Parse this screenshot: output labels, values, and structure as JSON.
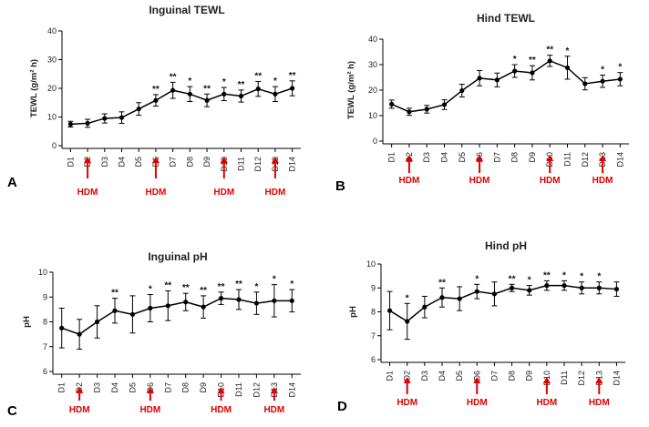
{
  "chart_data": [
    {
      "type": "line",
      "panel_letter": "A",
      "title": "Inguinal TEWL",
      "ylabel": "TEWL (g/m² h)",
      "ylim": [
        0,
        40
      ],
      "yticks": [
        0,
        10,
        20,
        30,
        40
      ],
      "grid": false,
      "categories": [
        "D1",
        "D2",
        "D3",
        "D4",
        "D5",
        "D6",
        "D7",
        "D8",
        "D9",
        "D10",
        "D11",
        "D12",
        "D13",
        "D14"
      ],
      "values": [
        7.5,
        7.8,
        9.5,
        9.8,
        12.8,
        15.8,
        19.3,
        18.0,
        15.8,
        18.0,
        17.3,
        19.8,
        18.0,
        20.0
      ],
      "errors": [
        1.0,
        1.4,
        1.6,
        2.0,
        2.2,
        2.0,
        2.8,
        2.6,
        2.2,
        2.3,
        2.1,
        2.6,
        2.6,
        2.6
      ],
      "significance": [
        "",
        "",
        "",
        "",
        "",
        "**",
        "**",
        "*",
        "**",
        "*",
        "**",
        "**",
        "*",
        "**"
      ],
      "hdm_days": [
        "D2",
        "D6",
        "D10",
        "D13"
      ],
      "hdm_label": "HDM"
    },
    {
      "type": "line",
      "panel_letter": "B",
      "title": "Hind TEWL",
      "ylabel": "TEWL (g/m² h)",
      "ylim": [
        0,
        40
      ],
      "yticks": [
        0,
        10,
        20,
        30,
        40
      ],
      "grid": false,
      "categories": [
        "D1",
        "D2",
        "D3",
        "D4",
        "D5",
        "D6",
        "D7",
        "D8",
        "D9",
        "D10",
        "D11",
        "D12",
        "D13",
        "D14"
      ],
      "values": [
        14.5,
        11.5,
        12.5,
        14.3,
        19.8,
        24.7,
        24.0,
        27.5,
        26.8,
        31.5,
        28.8,
        22.5,
        23.5,
        24.3
      ],
      "errors": [
        1.6,
        1.4,
        1.5,
        1.9,
        2.5,
        3.0,
        2.7,
        2.5,
        2.8,
        2.2,
        4.5,
        2.4,
        2.4,
        2.6
      ],
      "significance": [
        "",
        "",
        "",
        "",
        "",
        "",
        "",
        "*",
        "**",
        "**",
        "*",
        "",
        "*",
        "*"
      ],
      "hdm_days": [
        "D2",
        "D6",
        "D10",
        "D13"
      ],
      "hdm_label": "HDM"
    },
    {
      "type": "line",
      "panel_letter": "C",
      "title": "Inguinal pH",
      "ylabel": "pH",
      "ylim": [
        6,
        10
      ],
      "yticks": [
        6,
        7,
        8,
        9,
        10
      ],
      "grid": false,
      "categories": [
        "D1",
        "D2",
        "D3",
        "D4",
        "D5",
        "D6",
        "D7",
        "D8",
        "D9",
        "D10",
        "D11",
        "D12",
        "D13",
        "D14"
      ],
      "values": [
        7.75,
        7.5,
        8.0,
        8.45,
        8.3,
        8.55,
        8.65,
        8.8,
        8.6,
        8.95,
        8.9,
        8.75,
        8.85,
        8.85
      ],
      "errors": [
        0.8,
        0.6,
        0.65,
        0.5,
        0.75,
        0.55,
        0.6,
        0.35,
        0.45,
        0.25,
        0.4,
        0.45,
        0.65,
        0.45
      ],
      "significance": [
        "",
        "",
        "",
        "**",
        "",
        "*",
        "**",
        "**",
        "**",
        "**",
        "**",
        "*",
        "*",
        "*"
      ],
      "hdm_days": [
        "D2",
        "D6",
        "D10",
        "D13"
      ],
      "hdm_label": "HDM"
    },
    {
      "type": "line",
      "panel_letter": "D",
      "title": "Hind pH",
      "ylabel": "pH",
      "ylim": [
        6,
        10
      ],
      "yticks": [
        6,
        7,
        8,
        9,
        10
      ],
      "grid": false,
      "categories": [
        "D1",
        "D2",
        "D3",
        "D4",
        "D5",
        "D6",
        "D7",
        "D8",
        "D9",
        "D10",
        "D11",
        "D12",
        "D13",
        "D14"
      ],
      "values": [
        8.05,
        7.6,
        8.2,
        8.6,
        8.55,
        8.85,
        8.75,
        9.0,
        8.9,
        9.1,
        9.1,
        9.0,
        9.0,
        8.95
      ],
      "errors": [
        0.8,
        0.75,
        0.45,
        0.4,
        0.5,
        0.3,
        0.5,
        0.15,
        0.2,
        0.2,
        0.2,
        0.25,
        0.25,
        0.3
      ],
      "significance": [
        "",
        "*",
        "",
        "**",
        "",
        "*",
        "",
        "**",
        "*",
        "**",
        "*",
        "*",
        "*",
        ""
      ],
      "hdm_days": [
        "D2",
        "D6",
        "D10",
        "D13"
      ],
      "hdm_label": "HDM"
    }
  ]
}
